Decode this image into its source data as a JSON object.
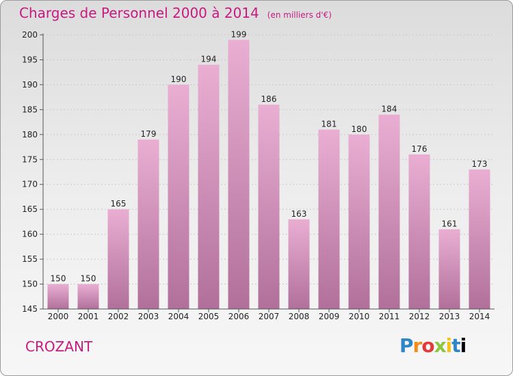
{
  "title": "Charges de Personnel 2000 à 2014",
  "subtitle": "(en milliers d'€)",
  "commune": "CROZANT",
  "logo_text": "Proxiti",
  "colors": {
    "accent": "#c71a80",
    "bar_top": "#eaaed3",
    "bar_bottom": "#b0709a"
  },
  "chart_data": {
    "type": "bar",
    "categories": [
      "2000",
      "2001",
      "2002",
      "2003",
      "2004",
      "2005",
      "2006",
      "2007",
      "2008",
      "2009",
      "2010",
      "2011",
      "2012",
      "2013",
      "2014"
    ],
    "values": [
      150,
      150,
      165,
      179,
      190,
      194,
      199,
      186,
      163,
      181,
      180,
      184,
      176,
      161,
      173
    ],
    "ylim": [
      145,
      200
    ],
    "yticks": [
      145,
      150,
      155,
      160,
      165,
      170,
      175,
      180,
      185,
      190,
      195,
      200
    ],
    "title": "Charges de Personnel 2000 à 2014",
    "xlabel": "",
    "ylabel": "",
    "grid": true
  }
}
